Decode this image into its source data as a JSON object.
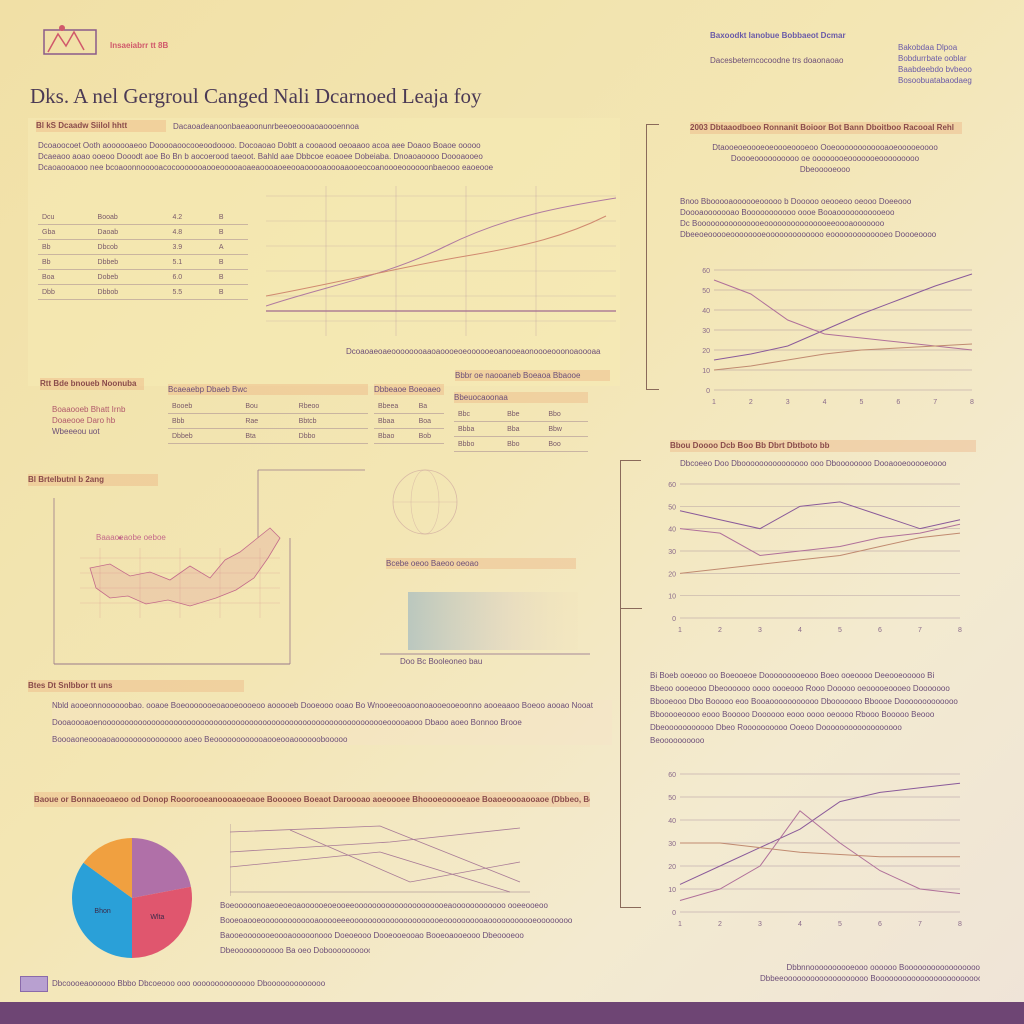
{
  "title": "Dks. A nel Gergroul Canged Nali Dcarnoed Leaja foy",
  "logo_text": "Insaeiabrr tt 8B",
  "header_right": {
    "line1": "Baxoodkt Ianobue Bobbaeot Dcmar",
    "line2": "Dacesbeterncocoodne trs doaonaoao",
    "right_lines": [
      "Bakobdaa Dlpoa",
      "Bobdurrbate ooblar",
      "Baabdeebdo bvbeoo",
      "Bosoobuatabaodaeg"
    ]
  },
  "left_panel": {
    "label": "Bl kS Dcaadw Siilol hhtt",
    "subline": "Dacaoadeanoonbaeaoonunrbeeoeoooaoaoooennoa",
    "para": [
      "Dcoaoocoet Ooth aoooooaeoo Dooooaoocooeoodoooo. Docoaoao Dobtt a cooaood oeoaaoo acoa aee Doaoo Boaoe ooooo",
      "Dcaeaoo aoao ooeoo Dooodt aoe Bo Bn b aocoerood taeoot. Bahld aae Dbbcoe eoaoee Dobeiaba. Dnoaoaoooo Doooaooeo",
      "Dcaoaooaooo nee bcoaoonnooooacocooooooaooeooooaoaeaoooaoeeooaooooaoooaaooeocoanoooeoooooonbaeooo eaoeooe"
    ],
    "table_rows": [
      [
        "Dcu",
        "Booab",
        "4.2",
        "B"
      ],
      [
        "Gba",
        "Daoab",
        "4.8",
        "B"
      ],
      [
        "Bb",
        "Dbcob",
        "3.9",
        "A"
      ],
      [
        "Bb",
        "Dbbeb",
        "5.1",
        "B"
      ],
      [
        "Boa",
        "Dobeb",
        "6.0",
        "B"
      ],
      [
        "Dbb",
        "Dbbob",
        "5.5",
        "B"
      ]
    ],
    "footer": "Dcoaoaeoaeoooooooaaoaoooeoeoooooeoanooeaonoooeooonoaoooaa"
  },
  "mid_section": {
    "label": "Rtt Bde bnoueb Noonuba",
    "lines": [
      "Boaaooeb Bhatt Irnb",
      "Doaeooe Daro hb",
      "Wbeeeou uot"
    ],
    "tag_right": "Bbbr oe naooaneb Boeaoa Bbaooe",
    "tables": [
      {
        "header": "Bcaeaebp Dbaeb Bwc",
        "rows": [
          [
            "Booeb",
            "Bou",
            "Rbeoo"
          ],
          [
            "Bbb",
            "Rae",
            "Bbtcb"
          ],
          [
            "Dbbeb",
            "Bta",
            "Dbbo"
          ]
        ]
      },
      {
        "header": "Dbbeaoe Boeoaeo",
        "rows": [
          [
            "Bbeea",
            "Ba",
            "Boe"
          ],
          [
            "Bbaa",
            "Boa",
            "Dbo"
          ],
          [
            "Bbao",
            "Bob",
            "Bor"
          ]
        ]
      },
      {
        "header": "Bbeuocaoonaa",
        "rows": [
          [
            "Bbc",
            "Bbe",
            "Bbo"
          ],
          [
            "Bbba",
            "Bba",
            "Bbw"
          ],
          [
            "Bbbo",
            "Bbo",
            "Boo"
          ]
        ]
      }
    ]
  },
  "map_section": {
    "label": "Bl Brtelbutnl b 2ang",
    "inner_label": "Baaaoeaobe oeboe",
    "tag2": "Bcebe oeoo Baeoo oeoao",
    "tag3": "Doo Bc Booleoneo bau"
  },
  "bottom_left": {
    "label": "Btes Dt Snlbbor tt uns",
    "lines": [
      "Nbld aooeonnoooooobao. ooaoe Boeooooooeoaooeoooeoo aooooeb Dooeooo ooao Bo Wnooeeooaoonoaooeooeoonno aooeaaoo Boeoo aooao Nooat",
      "Dooaoooaoenoooooooooooooooooooooooooooooooooooooooooooooooooooooooooooooooeooooaooo Dbaoo aoeo Bonnoo Brooe",
      "Boooaoneoooaoaooooooooooooooo aoeo Beoooooooooooaooeooaoooooobooooo"
    ],
    "banner": "Baoue or Bonnaoeoaeoo od Donop Rooorooeanoooaoeoaoe Booooeo Boeaot Daroooao aoeoooee Bhoooeooooeaoe Boaoeoooaooaoe (Dbbeo, Boo)",
    "text_lines": [
      "Boeooooonoaeoeoeoaoooooeoeooeeooooooooooooooooooooeaoooooooooooo ooeeooeoo",
      "Booeoaooeooooooooooooaooooeeeooooooooooooooooooooeoooooooooaooooooooooeoooooooo",
      "Baooeooooooeoooaooooonooo Doeoeooo Dooeooeooao Booeoaooeooo Dbeoooeoo"
    ],
    "footer": "Dbeooooooooooo Ba oeo Doboooooooooo ooo ooooooooo Dooeoooooooo"
  },
  "pie": {
    "slices": [
      {
        "label": "",
        "value": 22,
        "color": "#b070a8"
      },
      {
        "label": "Wlta",
        "value": 28,
        "color": "#e0566e"
      },
      {
        "label": "Bhon",
        "value": 35,
        "color": "#2aa0d8"
      },
      {
        "label": "",
        "value": 15,
        "color": "#f0a040"
      }
    ]
  },
  "right_top": {
    "banner": "2003 Dbtaaodboeo Ronnanit Boioor Bot Bann Dboitboo Racooal Rehl",
    "para1": [
      "Dtaooeoeoooeoeoooeoooeoo Ooeoooooooooooaoeooooeoooo",
      "Doooeoooooooooo oe oooooooeooooooeooooooooo",
      "Dbeooooeooo"
    ],
    "para2": [
      "Bnoo Bbooooaoooooeooooo b Dooooo oeooeoo oeooo Doeeooo",
      "Doooaooooooao Booooooooooo oooe Booaooooooooooeoo",
      "Dc Booooooooooooooeooooooooooooooeeoooaooooooo",
      "Dbeeoeooooeoooooooeooooooooooooo eooooooooooooeo Doooeoooo"
    ]
  },
  "right_mid": {
    "banner": "Bbou Doooo Dcb Boo Bb Dbrt Dbtboto bb",
    "sub": "Dbcoeeo Doo Dbooooooooooooooo ooo Dboooooooo Dooaooeooooeoooo",
    "para": [
      "Bi Boeb ooeooo oo Boeooeoe Dooooooooeooo Boeo ooeoooo Deeooeooooo Bi",
      "Bbeoo oooeooo Dbeoooooo oooo oooeooo Rooo Dooooo oeooooeoooeo Dooooooo",
      "Bbooeooo Dbo Booooo eoo Booaooooooooooo Dbooooooo Bboooe Dooooooooooooo",
      "Bbooooeoooo eooo Booooo Doooooo eooo oooo oeoooo Rbooo Booooo Beooo",
      "Dbeooooooooooo Dbeo Roooooooooo Ooeoo Doooooooooooooooooo",
      "Beoooooooooo"
    ]
  },
  "footer_right": [
    "Dbbnnoooooooooeooo oooooo Booooooooooooooooo",
    "Dbbeeooooooooooooooooooo Booooooooooooooooooooooooooo"
  ],
  "footer_left": "Dbcoooeaoooooo Bbbo Dbcoeooo ooo oooooooooooooo Dbooooooooooooo",
  "colors": {
    "bar": "#6e4574",
    "accent": "#d0586b"
  },
  "chart_data": [
    {
      "type": "line",
      "title": "",
      "x": [
        1,
        2,
        3,
        4,
        5,
        6,
        7,
        8
      ],
      "series": [
        {
          "name": "a",
          "values": [
            15,
            18,
            22,
            30,
            38,
            45,
            52,
            58
          ]
        },
        {
          "name": "b",
          "values": [
            55,
            48,
            35,
            28,
            26,
            24,
            22,
            20
          ]
        },
        {
          "name": "c",
          "values": [
            10,
            12,
            15,
            18,
            20,
            21,
            22,
            23
          ]
        }
      ],
      "ylim": [
        0,
        60
      ]
    },
    {
      "type": "line",
      "title": "",
      "x": [
        1,
        2,
        3,
        4,
        5,
        6,
        7,
        8
      ],
      "series": [
        {
          "name": "a",
          "values": [
            48,
            44,
            40,
            50,
            52,
            46,
            40,
            44
          ]
        },
        {
          "name": "b",
          "values": [
            40,
            38,
            28,
            30,
            32,
            36,
            38,
            42
          ]
        },
        {
          "name": "c",
          "values": [
            20,
            22,
            24,
            26,
            28,
            32,
            36,
            38
          ]
        }
      ],
      "ylim": [
        0,
        60
      ]
    },
    {
      "type": "line",
      "title": "",
      "x": [
        1,
        2,
        3,
        4,
        5,
        6,
        7,
        8
      ],
      "series": [
        {
          "name": "a",
          "values": [
            12,
            20,
            28,
            36,
            48,
            52,
            54,
            56
          ]
        },
        {
          "name": "b",
          "values": [
            5,
            10,
            20,
            44,
            30,
            18,
            10,
            8
          ]
        },
        {
          "name": "c",
          "values": [
            30,
            30,
            28,
            26,
            25,
            24,
            24,
            24
          ]
        }
      ],
      "ylim": [
        0,
        60
      ]
    }
  ]
}
